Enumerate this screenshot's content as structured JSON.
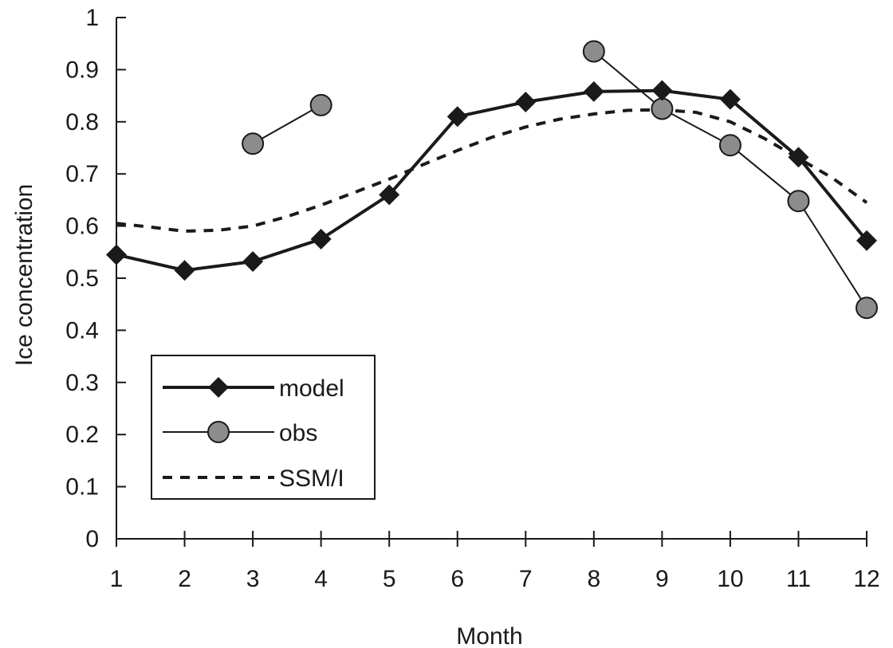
{
  "chart_data": {
    "type": "line",
    "title": "",
    "xlabel": "Month",
    "ylabel": "Ice concentration",
    "x": [
      1,
      2,
      3,
      4,
      5,
      6,
      7,
      8,
      9,
      10,
      11,
      12
    ],
    "xlim": [
      1,
      12
    ],
    "ylim": [
      0,
      1
    ],
    "x_ticks": [
      "1",
      "2",
      "3",
      "4",
      "5",
      "6",
      "7",
      "8",
      "9",
      "10",
      "11",
      "12"
    ],
    "y_ticks": [
      "0",
      "0.1",
      "0.2",
      "0.3",
      "0.4",
      "0.5",
      "0.6",
      "0.7",
      "0.8",
      "0.9",
      "1"
    ],
    "grid": false,
    "legend_position": "lower-left",
    "series": [
      {
        "name": "model",
        "style": "solid-thick",
        "marker": "diamond",
        "color": "#1a1a1a",
        "segments": [
          [
            [
              1,
              0.545
            ],
            [
              2,
              0.515
            ],
            [
              3,
              0.532
            ],
            [
              4,
              0.575
            ],
            [
              5,
              0.66
            ],
            [
              6,
              0.81
            ],
            [
              7,
              0.838
            ],
            [
              8,
              0.858
            ],
            [
              9,
              0.86
            ],
            [
              10,
              0.843
            ],
            [
              11,
              0.732
            ],
            [
              12,
              0.572
            ]
          ]
        ]
      },
      {
        "name": "obs",
        "style": "solid-thin",
        "marker": "circle",
        "color": "#1a1a1a",
        "marker_fill": "#8c8c8c",
        "segments": [
          [
            [
              3,
              0.758
            ],
            [
              4,
              0.832
            ]
          ],
          [
            [
              8,
              0.935
            ],
            [
              9,
              0.825
            ],
            [
              10,
              0.755
            ],
            [
              11,
              0.648
            ],
            [
              12,
              0.443
            ]
          ]
        ]
      },
      {
        "name": "SSM/I",
        "style": "dashed",
        "marker": "none",
        "color": "#1a1a1a",
        "segments": [
          [
            [
              1,
              0.605
            ],
            [
              1.5,
              0.598
            ],
            [
              2,
              0.59
            ],
            [
              2.5,
              0.592
            ],
            [
              3,
              0.6
            ],
            [
              3.5,
              0.618
            ],
            [
              4,
              0.64
            ],
            [
              4.5,
              0.665
            ],
            [
              5,
              0.69
            ],
            [
              5.5,
              0.718
            ],
            [
              6,
              0.745
            ],
            [
              6.5,
              0.77
            ],
            [
              7,
              0.79
            ],
            [
              7.5,
              0.805
            ],
            [
              8,
              0.815
            ],
            [
              8.5,
              0.822
            ],
            [
              9,
              0.823
            ],
            [
              9.5,
              0.818
            ],
            [
              10,
              0.8
            ],
            [
              10.5,
              0.768
            ],
            [
              11,
              0.73
            ],
            [
              11.5,
              0.692
            ],
            [
              12,
              0.645
            ]
          ]
        ]
      }
    ]
  }
}
